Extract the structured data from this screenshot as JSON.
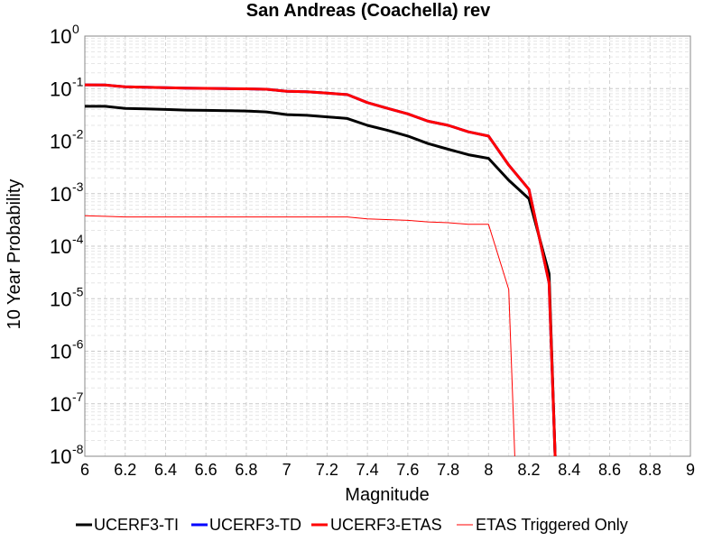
{
  "chart_data": {
    "type": "line",
    "title": "San Andreas (Coachella) rev",
    "xlabel": "Magnitude",
    "ylabel": "10 Year Probability",
    "xlim": [
      6,
      9
    ],
    "ylim": [
      1e-08,
      1
    ],
    "yscale": "log",
    "grid": true,
    "legend_position": "bottom",
    "x_ticks": [
      "6",
      "6.2",
      "6.4",
      "6.6",
      "6.8",
      "7",
      "7.2",
      "7.4",
      "7.6",
      "7.8",
      "8",
      "8.2",
      "8.4",
      "8.6",
      "8.8",
      "9"
    ],
    "y_tick_exponents": [
      "0",
      "-1",
      "-2",
      "-3",
      "-4",
      "-5",
      "-6",
      "-7",
      "-8"
    ],
    "y_tick_base": "10",
    "series": [
      {
        "name": "UCERF3-TI",
        "color": "#000000",
        "width": 3,
        "x": [
          6.0,
          6.1,
          6.2,
          6.3,
          6.4,
          6.5,
          6.6,
          6.7,
          6.8,
          6.9,
          7.0,
          7.1,
          7.2,
          7.3,
          7.4,
          7.5,
          7.6,
          7.7,
          7.8,
          7.9,
          8.0,
          8.1,
          8.2,
          8.3,
          8.33
        ],
        "y": [
          0.046,
          0.046,
          0.042,
          0.041,
          0.04,
          0.039,
          0.0385,
          0.038,
          0.0375,
          0.036,
          0.032,
          0.031,
          0.029,
          0.027,
          0.02,
          0.016,
          0.0125,
          0.009,
          0.007,
          0.0055,
          0.0047,
          0.0018,
          0.0008,
          3e-05,
          1e-08
        ]
      },
      {
        "name": "UCERF3-TD",
        "color": "#0000ff",
        "width": 3,
        "x": [
          6.0,
          6.1,
          6.2,
          6.3,
          6.4,
          6.5,
          6.6,
          6.7,
          6.8,
          6.9,
          7.0,
          7.1,
          7.2,
          7.3,
          7.4,
          7.5,
          7.6,
          7.7,
          7.8,
          7.9,
          8.0,
          8.1,
          8.2,
          8.3,
          8.33
        ],
        "y": [
          0.118,
          0.117,
          0.108,
          0.106,
          0.104,
          0.102,
          0.101,
          0.1,
          0.099,
          0.097,
          0.089,
          0.087,
          0.082,
          0.077,
          0.054,
          0.042,
          0.033,
          0.024,
          0.02,
          0.015,
          0.0125,
          0.0035,
          0.0012,
          2e-05,
          1e-08
        ]
      },
      {
        "name": "UCERF3-ETAS",
        "color": "#ff0000",
        "width": 3,
        "x": [
          6.0,
          6.1,
          6.2,
          6.3,
          6.4,
          6.5,
          6.6,
          6.7,
          6.8,
          6.9,
          7.0,
          7.1,
          7.2,
          7.3,
          7.4,
          7.5,
          7.6,
          7.7,
          7.8,
          7.9,
          8.0,
          8.1,
          8.2,
          8.3,
          8.33
        ],
        "y": [
          0.118,
          0.117,
          0.108,
          0.106,
          0.104,
          0.102,
          0.101,
          0.1,
          0.099,
          0.097,
          0.089,
          0.087,
          0.082,
          0.077,
          0.054,
          0.042,
          0.033,
          0.024,
          0.02,
          0.015,
          0.0125,
          0.0035,
          0.0012,
          2e-05,
          1e-08
        ]
      },
      {
        "name": "ETAS Triggered Only",
        "color": "#ff0000",
        "width": 1,
        "x": [
          6.0,
          6.2,
          6.4,
          6.6,
          6.8,
          7.0,
          7.2,
          7.3,
          7.4,
          7.6,
          7.7,
          7.8,
          7.9,
          8.0,
          8.1,
          8.13
        ],
        "y": [
          0.00038,
          0.00036,
          0.00036,
          0.00036,
          0.00036,
          0.00036,
          0.00036,
          0.00036,
          0.00033,
          0.00031,
          0.00029,
          0.00028,
          0.00026,
          0.00026,
          1.5e-05,
          1e-08
        ]
      }
    ]
  }
}
